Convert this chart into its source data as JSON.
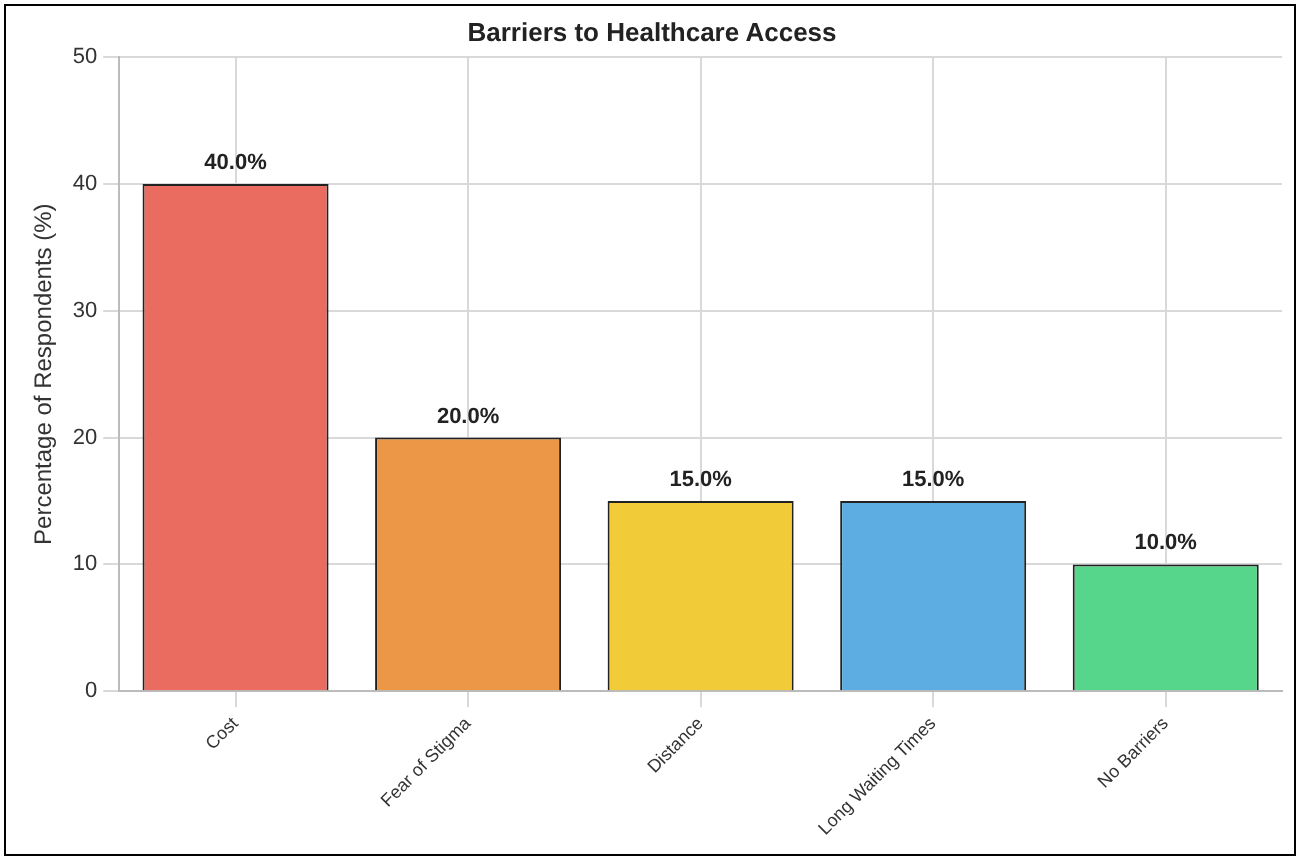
{
  "chart_data": {
    "type": "bar",
    "title": "Barriers to Healthcare Access",
    "ylabel": "Percentage of Respondents (%)",
    "categories": [
      "Cost",
      "Fear of Stigma",
      "Distance",
      "Long Waiting Times",
      "No Barriers"
    ],
    "values": [
      40,
      20,
      15,
      15,
      10
    ],
    "colors": [
      "#ea6b5f",
      "#ec9648",
      "#f2cc38",
      "#5dade2",
      "#56d68a"
    ],
    "value_labels": [
      "40.0%",
      "20.0%",
      "15.0%",
      "15.0%",
      "10.0%"
    ],
    "ylim": [
      0,
      50
    ],
    "yticks": [
      0,
      10,
      20,
      30,
      40,
      50
    ],
    "grid": true,
    "legend": false
  }
}
